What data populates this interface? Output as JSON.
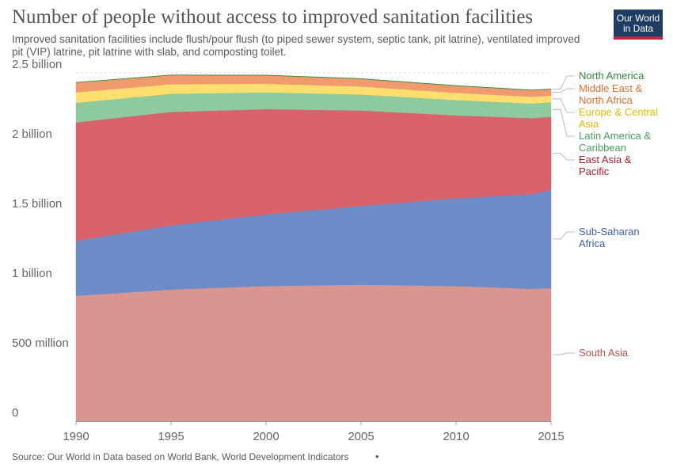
{
  "header": {
    "title": "Number of people without access to improved sanitation facilities",
    "subtitle": "Improved sanitation facilities include flush/pour flush (to piped sewer system, septic tank, pit latrine), ventilated improved pit (VIP) latrine, pit latrine with slab, and composting toilet.",
    "logo_line1": "Our World",
    "logo_line2": "in Data"
  },
  "footer": {
    "source": "Source: Our World in Data based on World Bank, World Development Indicators",
    "dot": "•"
  },
  "chart_data": {
    "type": "area",
    "stacked": true,
    "title": "Number of people without access to improved sanitation facilities",
    "x": [
      1990,
      1995,
      2000,
      2005,
      2010,
      2014,
      2015
    ],
    "xlim": [
      1990,
      2015
    ],
    "xticks": [
      "1990",
      "1995",
      "2000",
      "2005",
      "2010",
      "2015"
    ],
    "ylim": [
      0,
      2500000000
    ],
    "yticks": [
      {
        "value": 0,
        "label": "0"
      },
      {
        "value": 500000000,
        "label": "500 million"
      },
      {
        "value": 1000000000,
        "label": "1 billion"
      },
      {
        "value": 1500000000,
        "label": "1.5 billion"
      },
      {
        "value": 2000000000,
        "label": "2 billion"
      },
      {
        "value": 2500000000,
        "label": "2.5 billion"
      }
    ],
    "grid": "horizontal",
    "legend_position": "right",
    "series": [
      {
        "name": "South Asia",
        "color": "#d9958f",
        "label_color": "#c0504d",
        "values": [
          900000000,
          945000000,
          970000000,
          980000000,
          970000000,
          950000000,
          955000000
        ]
      },
      {
        "name": "Sub-Saharan Africa",
        "color": "#6b8cc7",
        "label_color": "#3f5fa8",
        "values": [
          395000000,
          460000000,
          515000000,
          565000000,
          630000000,
          680000000,
          705000000
        ]
      },
      {
        "name": "East Asia & Pacific",
        "color": "#d9636a",
        "label_color": "#b31d2b",
        "values": [
          850000000,
          815000000,
          755000000,
          685000000,
          595000000,
          545000000,
          525000000
        ]
      },
      {
        "name": "Latin America & Caribbean",
        "color": "#8dcb9f",
        "label_color": "#4aa05e",
        "values": [
          140000000,
          130000000,
          120000000,
          115000000,
          110000000,
          105000000,
          105000000
        ]
      },
      {
        "name": "Europe & Central Asia",
        "color": "#fcdf6f",
        "label_color": "#e8b808",
        "values": [
          75000000,
          68000000,
          62000000,
          57000000,
          52000000,
          48000000,
          47000000
        ]
      },
      {
        "name": "Middle East & North Africa",
        "color": "#f19a6e",
        "label_color": "#e56e2e",
        "values": [
          70000000,
          65000000,
          60000000,
          55000000,
          50000000,
          47000000,
          46000000
        ]
      },
      {
        "name": "North America",
        "color": "#2a8c3a",
        "label_color": "#2a8c3a",
        "values": [
          2000000,
          2000000,
          2000000,
          2000000,
          2000000,
          2000000,
          2000000
        ]
      }
    ]
  }
}
